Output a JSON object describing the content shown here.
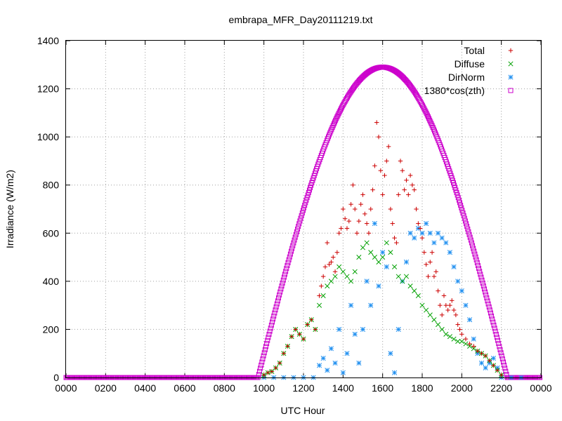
{
  "chart_data": {
    "type": "scatter",
    "title": "embrapa_MFR_Day20111219.txt",
    "xlabel": "UTC Hour",
    "ylabel": "Irradiance (W/m2)",
    "xlim": [
      0,
      24
    ],
    "ylim": [
      0,
      1400
    ],
    "x_ticks": [
      {
        "value": 0,
        "label": "0000"
      },
      {
        "value": 2,
        "label": "0200"
      },
      {
        "value": 4,
        "label": "0400"
      },
      {
        "value": 6,
        "label": "0600"
      },
      {
        "value": 8,
        "label": "0800"
      },
      {
        "value": 10,
        "label": "1000"
      },
      {
        "value": 12,
        "label": "1200"
      },
      {
        "value": 14,
        "label": "1400"
      },
      {
        "value": 16,
        "label": "1600"
      },
      {
        "value": 18,
        "label": "1800"
      },
      {
        "value": 20,
        "label": "2000"
      },
      {
        "value": 22,
        "label": "2200"
      },
      {
        "value": 24,
        "label": "0000"
      }
    ],
    "y_ticks": [
      {
        "value": 0,
        "label": "0"
      },
      {
        "value": 200,
        "label": "200"
      },
      {
        "value": 400,
        "label": "400"
      },
      {
        "value": 600,
        "label": "600"
      },
      {
        "value": 800,
        "label": "800"
      },
      {
        "value": 1000,
        "label": "1000"
      },
      {
        "value": 1200,
        "label": "1200"
      },
      {
        "value": 1400,
        "label": "1400"
      }
    ],
    "grid": true,
    "legend_position": "top-right",
    "series": [
      {
        "name": "Total",
        "marker": "plus",
        "color": "#cc0000",
        "points": [
          [
            10.0,
            10
          ],
          [
            10.2,
            20
          ],
          [
            10.4,
            25
          ],
          [
            10.6,
            40
          ],
          [
            10.8,
            60
          ],
          [
            11.0,
            100
          ],
          [
            11.2,
            130
          ],
          [
            11.4,
            170
          ],
          [
            11.6,
            200
          ],
          [
            11.8,
            180
          ],
          [
            12.0,
            160
          ],
          [
            12.2,
            220
          ],
          [
            12.4,
            240
          ],
          [
            12.6,
            200
          ],
          [
            12.8,
            340
          ],
          [
            12.9,
            380
          ],
          [
            13.0,
            420
          ],
          [
            13.1,
            460
          ],
          [
            13.2,
            560
          ],
          [
            13.3,
            470
          ],
          [
            13.4,
            480
          ],
          [
            13.5,
            500
          ],
          [
            13.6,
            440
          ],
          [
            13.7,
            520
          ],
          [
            13.8,
            600
          ],
          [
            13.9,
            620
          ],
          [
            14.0,
            700
          ],
          [
            14.1,
            660
          ],
          [
            14.2,
            620
          ],
          [
            14.3,
            650
          ],
          [
            14.4,
            720
          ],
          [
            14.5,
            800
          ],
          [
            14.6,
            700
          ],
          [
            14.7,
            600
          ],
          [
            14.8,
            650
          ],
          [
            14.9,
            720
          ],
          [
            15.0,
            760
          ],
          [
            15.1,
            680
          ],
          [
            15.2,
            640
          ],
          [
            15.3,
            600
          ],
          [
            15.4,
            700
          ],
          [
            15.5,
            780
          ],
          [
            15.6,
            880
          ],
          [
            15.7,
            1060
          ],
          [
            15.8,
            1000
          ],
          [
            15.9,
            860
          ],
          [
            16.0,
            760
          ],
          [
            16.1,
            840
          ],
          [
            16.2,
            900
          ],
          [
            16.3,
            960
          ],
          [
            16.4,
            700
          ],
          [
            16.5,
            640
          ],
          [
            16.6,
            580
          ],
          [
            16.7,
            560
          ],
          [
            16.8,
            760
          ],
          [
            16.9,
            900
          ],
          [
            17.0,
            860
          ],
          [
            17.1,
            780
          ],
          [
            17.2,
            820
          ],
          [
            17.3,
            760
          ],
          [
            17.4,
            840
          ],
          [
            17.5,
            800
          ],
          [
            17.6,
            780
          ],
          [
            17.7,
            700
          ],
          [
            17.8,
            640
          ],
          [
            17.9,
            620
          ],
          [
            18.0,
            580
          ],
          [
            18.1,
            520
          ],
          [
            18.2,
            470
          ],
          [
            18.3,
            420
          ],
          [
            18.4,
            480
          ],
          [
            18.5,
            520
          ],
          [
            18.6,
            420
          ],
          [
            18.7,
            440
          ],
          [
            18.8,
            360
          ],
          [
            18.9,
            300
          ],
          [
            19.0,
            260
          ],
          [
            19.1,
            340
          ],
          [
            19.2,
            300
          ],
          [
            19.3,
            280
          ],
          [
            19.4,
            300
          ],
          [
            19.5,
            320
          ],
          [
            19.6,
            280
          ],
          [
            19.7,
            260
          ],
          [
            19.8,
            220
          ],
          [
            19.9,
            200
          ],
          [
            20.0,
            180
          ],
          [
            20.2,
            160
          ],
          [
            20.4,
            140
          ],
          [
            20.6,
            130
          ],
          [
            20.8,
            110
          ],
          [
            21.0,
            100
          ],
          [
            21.2,
            90
          ],
          [
            21.4,
            70
          ],
          [
            21.6,
            50
          ],
          [
            21.8,
            30
          ],
          [
            22.0,
            10
          ]
        ]
      },
      {
        "name": "Diffuse",
        "marker": "cross",
        "color": "#00a000",
        "points": [
          [
            10.0,
            10
          ],
          [
            10.2,
            20
          ],
          [
            10.4,
            25
          ],
          [
            10.6,
            40
          ],
          [
            10.8,
            60
          ],
          [
            11.0,
            100
          ],
          [
            11.2,
            130
          ],
          [
            11.4,
            170
          ],
          [
            11.6,
            200
          ],
          [
            11.8,
            180
          ],
          [
            12.0,
            160
          ],
          [
            12.2,
            220
          ],
          [
            12.4,
            240
          ],
          [
            12.6,
            200
          ],
          [
            12.8,
            300
          ],
          [
            13.0,
            340
          ],
          [
            13.2,
            380
          ],
          [
            13.4,
            400
          ],
          [
            13.6,
            420
          ],
          [
            13.8,
            460
          ],
          [
            14.0,
            440
          ],
          [
            14.2,
            420
          ],
          [
            14.4,
            400
          ],
          [
            14.6,
            440
          ],
          [
            14.8,
            500
          ],
          [
            15.0,
            540
          ],
          [
            15.2,
            560
          ],
          [
            15.4,
            520
          ],
          [
            15.6,
            500
          ],
          [
            15.8,
            480
          ],
          [
            16.0,
            500
          ],
          [
            16.2,
            560
          ],
          [
            16.4,
            520
          ],
          [
            16.6,
            460
          ],
          [
            16.8,
            420
          ],
          [
            17.0,
            400
          ],
          [
            17.2,
            420
          ],
          [
            17.4,
            380
          ],
          [
            17.6,
            360
          ],
          [
            17.8,
            340
          ],
          [
            18.0,
            300
          ],
          [
            18.2,
            280
          ],
          [
            18.4,
            260
          ],
          [
            18.6,
            240
          ],
          [
            18.8,
            220
          ],
          [
            19.0,
            200
          ],
          [
            19.2,
            180
          ],
          [
            19.4,
            170
          ],
          [
            19.6,
            160
          ],
          [
            19.8,
            150
          ],
          [
            20.0,
            150
          ],
          [
            20.2,
            140
          ],
          [
            20.4,
            130
          ],
          [
            20.6,
            120
          ],
          [
            20.8,
            110
          ],
          [
            21.0,
            100
          ],
          [
            21.2,
            90
          ],
          [
            21.4,
            70
          ],
          [
            21.6,
            50
          ],
          [
            21.8,
            30
          ],
          [
            22.0,
            10
          ]
        ]
      },
      {
        "name": "DirNorm",
        "marker": "star",
        "color": "#1f8ff0",
        "points": [
          [
            10.0,
            0
          ],
          [
            10.5,
            0
          ],
          [
            11.0,
            0
          ],
          [
            11.5,
            0
          ],
          [
            12.0,
            0
          ],
          [
            12.5,
            0
          ],
          [
            12.8,
            50
          ],
          [
            13.0,
            80
          ],
          [
            13.2,
            30
          ],
          [
            13.4,
            120
          ],
          [
            13.6,
            60
          ],
          [
            13.8,
            200
          ],
          [
            14.0,
            20
          ],
          [
            14.2,
            100
          ],
          [
            14.4,
            300
          ],
          [
            14.6,
            180
          ],
          [
            14.8,
            60
          ],
          [
            15.0,
            200
          ],
          [
            15.2,
            400
          ],
          [
            15.4,
            300
          ],
          [
            15.6,
            640
          ],
          [
            15.8,
            380
          ],
          [
            16.0,
            520
          ],
          [
            16.2,
            460
          ],
          [
            16.4,
            100
          ],
          [
            16.6,
            20
          ],
          [
            16.8,
            200
          ],
          [
            17.0,
            400
          ],
          [
            17.2,
            480
          ],
          [
            17.4,
            600
          ],
          [
            17.6,
            580
          ],
          [
            17.8,
            620
          ],
          [
            18.0,
            600
          ],
          [
            18.2,
            640
          ],
          [
            18.4,
            600
          ],
          [
            18.6,
            560
          ],
          [
            18.8,
            600
          ],
          [
            19.0,
            580
          ],
          [
            19.2,
            560
          ],
          [
            19.4,
            520
          ],
          [
            19.6,
            460
          ],
          [
            19.8,
            400
          ],
          [
            20.0,
            360
          ],
          [
            20.2,
            300
          ],
          [
            20.4,
            240
          ],
          [
            20.6,
            160
          ],
          [
            20.8,
            100
          ],
          [
            21.0,
            60
          ],
          [
            21.2,
            40
          ],
          [
            21.4,
            60
          ],
          [
            21.6,
            80
          ],
          [
            21.8,
            40
          ],
          [
            22.0,
            0
          ],
          [
            22.5,
            0
          ],
          [
            23.0,
            0
          ]
        ]
      },
      {
        "name": "1380*cos(zth)",
        "marker": "square",
        "color": "#cc00cc",
        "curve": {
          "start": 9.7,
          "end": 22.3,
          "peak_x": 16.0,
          "peak_y": 1290
        }
      }
    ]
  }
}
